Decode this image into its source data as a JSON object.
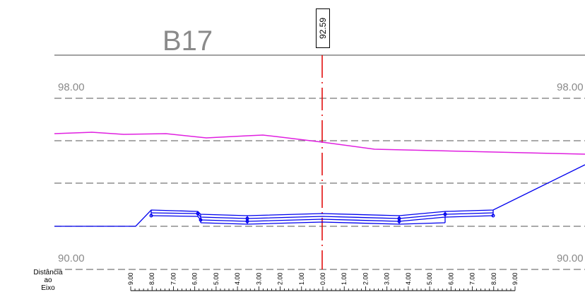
{
  "section": {
    "title": "B17",
    "station": "92.59"
  },
  "elevation_labels": {
    "top_left": "98.00",
    "top_right": "98.00",
    "bottom_left": "90.00",
    "bottom_right": "90.00"
  },
  "offset_axis": {
    "label_line1": "Distância",
    "label_line2": "ao",
    "label_line3": "Eixo",
    "ticks": [
      "9.00",
      "8.00",
      "7.00",
      "6.00",
      "5.00",
      "4.00",
      "3.00",
      "2.00",
      "1.00",
      "0.00",
      "1.00",
      "2.00",
      "3.00",
      "4.00",
      "5.00",
      "6.00",
      "7.00",
      "8.00",
      "9.00"
    ]
  },
  "colors": {
    "terrain": "#e020e0",
    "road": "#0000ee",
    "centerline": "#e00000",
    "grid": "#777777",
    "text": "#8a8a8a"
  }
}
